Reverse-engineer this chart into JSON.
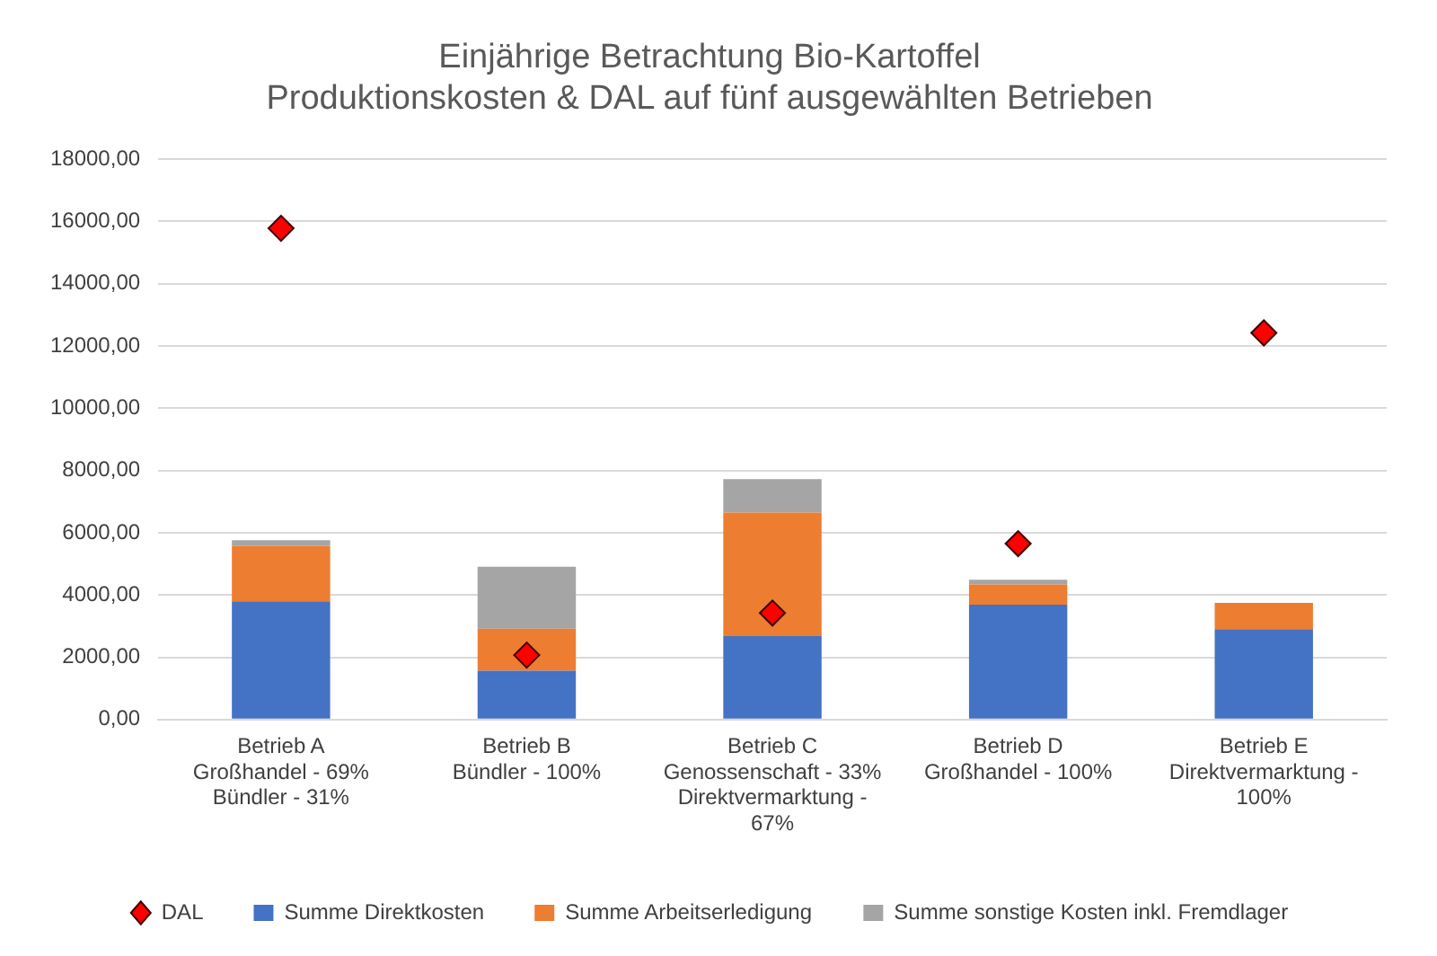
{
  "chart_data": {
    "type": "bar",
    "title": "Einjährige Betrachtung Bio-Kartoffel",
    "subtitle": "Produktionskosten & DAL auf fünf ausgewählten Betrieben",
    "categories": [
      "Betrieb A\nGroßhandel - 69%\nBündler - 31%",
      "Betrieb B\nBündler - 100%",
      "Betrieb C\nGenossenschaft - 33%\nDirektvermarktung -\n67%",
      "Betrieb D\nGroßhandel - 100%",
      "Betrieb E\nDirektvermarktung -\n100%"
    ],
    "series": [
      {
        "name": "Summe Direktkosten",
        "color": "#4472c4",
        "values": [
          3800,
          1570,
          2680,
          3690,
          2900
        ]
      },
      {
        "name": "Summe Arbeitserledigung",
        "color": "#ed7d31",
        "values": [
          1780,
          1350,
          3970,
          650,
          850
        ]
      },
      {
        "name": "Summe sonstige Kosten inkl. Fremdlager",
        "color": "#a5a5a5",
        "values": [
          180,
          1990,
          1070,
          150,
          0
        ]
      },
      {
        "name": "DAL",
        "type": "scatter",
        "marker": "diamond",
        "color": "#ff0000",
        "values": [
          15780,
          2070,
          3420,
          5650,
          12420
        ]
      }
    ],
    "stacked": true,
    "ylim": [
      0,
      18000
    ],
    "yticks": [
      {
        "value": 0,
        "label": "0,00"
      },
      {
        "value": 2000,
        "label": "2000,00"
      },
      {
        "value": 4000,
        "label": "4000,00"
      },
      {
        "value": 6000,
        "label": "6000,00"
      },
      {
        "value": 8000,
        "label": "8000,00"
      },
      {
        "value": 10000,
        "label": "10000,00"
      },
      {
        "value": 12000,
        "label": "12000,00"
      },
      {
        "value": 14000,
        "label": "14000,00"
      },
      {
        "value": 16000,
        "label": "16000,00"
      },
      {
        "value": 18000,
        "label": "18000,00"
      }
    ],
    "grid": "y",
    "legend": "bottom"
  }
}
